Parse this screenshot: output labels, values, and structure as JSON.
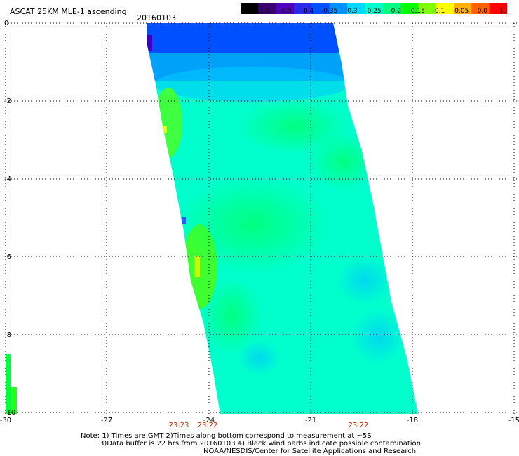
{
  "header": {
    "title": "ASCAT 25KM MLE-1 ascending",
    "date": "20160103"
  },
  "colorbar": {
    "colors": [
      "#000000",
      "#3a0070",
      "#5000b8",
      "#2a2ae8",
      "#0050ff",
      "#0090ff",
      "#00d8ff",
      "#00ffd0",
      "#00ff80",
      "#00ff00",
      "#80ff00",
      "#ffff00",
      "#ffb000",
      "#ff6000",
      "#ff0000"
    ],
    "labels": [
      "-3.0",
      "-1.0",
      "-0.5",
      "-0.4",
      "-0.35",
      "-0.3",
      "-0.25",
      "-0.2",
      "-0.15",
      "-0.1",
      "-0.05",
      "0.0",
      "1.0"
    ]
  },
  "axes": {
    "x_ticks": [
      "-30",
      "-27",
      "-24",
      "-21",
      "-18",
      "-15"
    ],
    "y_ticks": [
      "0",
      "-2",
      "-4",
      "-6",
      "-8",
      "-10"
    ]
  },
  "times": [
    "23:23",
    "23:22",
    "23:22"
  ],
  "time_color": "#cc2200",
  "notes": {
    "line1": "Note: 1) Times are GMT 2)Times along bottom correspond to measurement at ~5S",
    "line2": "3)Data buffer is 22 hrs from 20160103 4) Black wind barbs indicate possible contamination",
    "line3": "NOAA/NESDIS/Center for Satellite Applications and Research"
  }
}
